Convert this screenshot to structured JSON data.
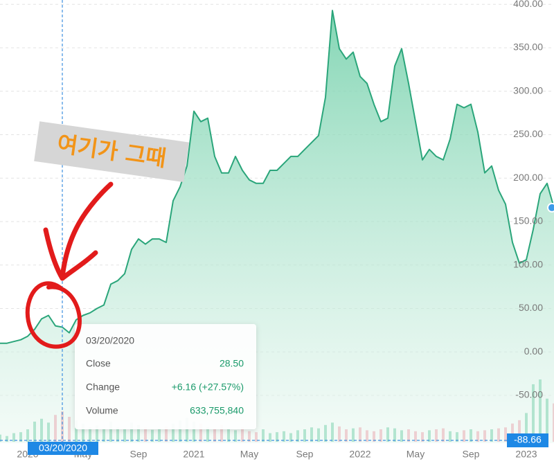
{
  "chart_data": {
    "type": "area",
    "categories": [
      null,
      null,
      null,
      null,
      "2020",
      null,
      null,
      null,
      null,
      null,
      null,
      null,
      "May",
      null,
      null,
      null,
      null,
      null,
      null,
      null,
      "Sep",
      null,
      null,
      null,
      null,
      null,
      null,
      null,
      "2021",
      null,
      null,
      null,
      null,
      null,
      null,
      null,
      "May",
      null,
      null,
      null,
      null,
      null,
      null,
      null,
      "Sep",
      null,
      null,
      null,
      null,
      null,
      null,
      null,
      "2022",
      null,
      null,
      null,
      null,
      null,
      null,
      null,
      "May",
      null,
      null,
      null,
      null,
      null,
      null,
      null,
      "Sep",
      null,
      null,
      null,
      null,
      null,
      null,
      null,
      "2023",
      null,
      null,
      null,
      null
    ],
    "series": [
      {
        "color": "#2aa57a",
        "values": [
          10,
          10,
          12,
          14,
          18,
          26,
          38,
          42,
          30,
          28.5,
          22,
          37,
          42,
          45,
          50,
          54,
          78,
          82,
          90,
          118,
          130,
          124,
          130,
          130,
          126,
          174,
          190,
          214,
          277,
          265,
          269,
          225,
          206,
          206,
          225,
          209,
          198,
          194,
          194,
          209,
          209,
          217,
          225,
          225,
          233,
          241,
          249,
          293,
          393,
          349,
          337,
          345,
          317,
          309,
          285,
          265,
          269,
          329,
          349,
          309,
          265,
          221,
          233,
          225,
          221,
          245,
          285,
          281,
          285,
          253,
          206,
          214,
          186,
          170,
          126,
          102,
          106,
          141,
          182,
          194,
          166
        ]
      },
      {
        "axis": "volume",
        "up_color": "#7fd3b0",
        "down_color": "#f5a9b5",
        "values": [
          150000000,
          120000000,
          180000000,
          200000000,
          260000000,
          420000000,
          480000000,
          400000000,
          560000000,
          633755840,
          520000000,
          450000000,
          380000000,
          300000000,
          340000000,
          280000000,
          420000000,
          300000000,
          260000000,
          400000000,
          350000000,
          300000000,
          250000000,
          280000000,
          320000000,
          380000000,
          450000000,
          500000000,
          420000000,
          380000000,
          300000000,
          280000000,
          350000000,
          260000000,
          240000000,
          300000000,
          220000000,
          200000000,
          260000000,
          180000000,
          200000000,
          220000000,
          180000000,
          240000000,
          260000000,
          300000000,
          280000000,
          350000000,
          400000000,
          320000000,
          260000000,
          280000000,
          300000000,
          240000000,
          220000000,
          260000000,
          300000000,
          280000000,
          240000000,
          260000000,
          220000000,
          200000000,
          240000000,
          260000000,
          280000000,
          220000000,
          200000000,
          240000000,
          260000000,
          220000000,
          240000000,
          260000000,
          280000000,
          300000000,
          380000000,
          450000000,
          600000000,
          1200000000,
          1300000000,
          900000000,
          800000000
        ]
      }
    ],
    "ylim": [
      -105,
      405
    ],
    "yticks": [
      {
        "value": 400,
        "label": "400.00"
      },
      {
        "value": 350,
        "label": "350.00"
      },
      {
        "value": 300,
        "label": "300.00"
      },
      {
        "value": 250,
        "label": "250.00"
      },
      {
        "value": 200,
        "label": "200.00"
      },
      {
        "value": 150,
        "label": "150.00"
      },
      {
        "value": 100,
        "label": "100.00"
      },
      {
        "value": 50,
        "label": "50.00"
      },
      {
        "value": 0,
        "label": "0.00"
      },
      {
        "value": -50,
        "label": "-50.00"
      }
    ],
    "grid": true,
    "annotation": "여기가 그때",
    "crosshair": {
      "date": "03/20/2020",
      "price": "-88.66"
    },
    "tooltip": {
      "date": "03/20/2020",
      "rows": [
        [
          "Close",
          "28.50"
        ],
        [
          "Change",
          "+6.16 (+27.57%)"
        ],
        [
          "Volume",
          "633,755,840"
        ]
      ]
    }
  }
}
